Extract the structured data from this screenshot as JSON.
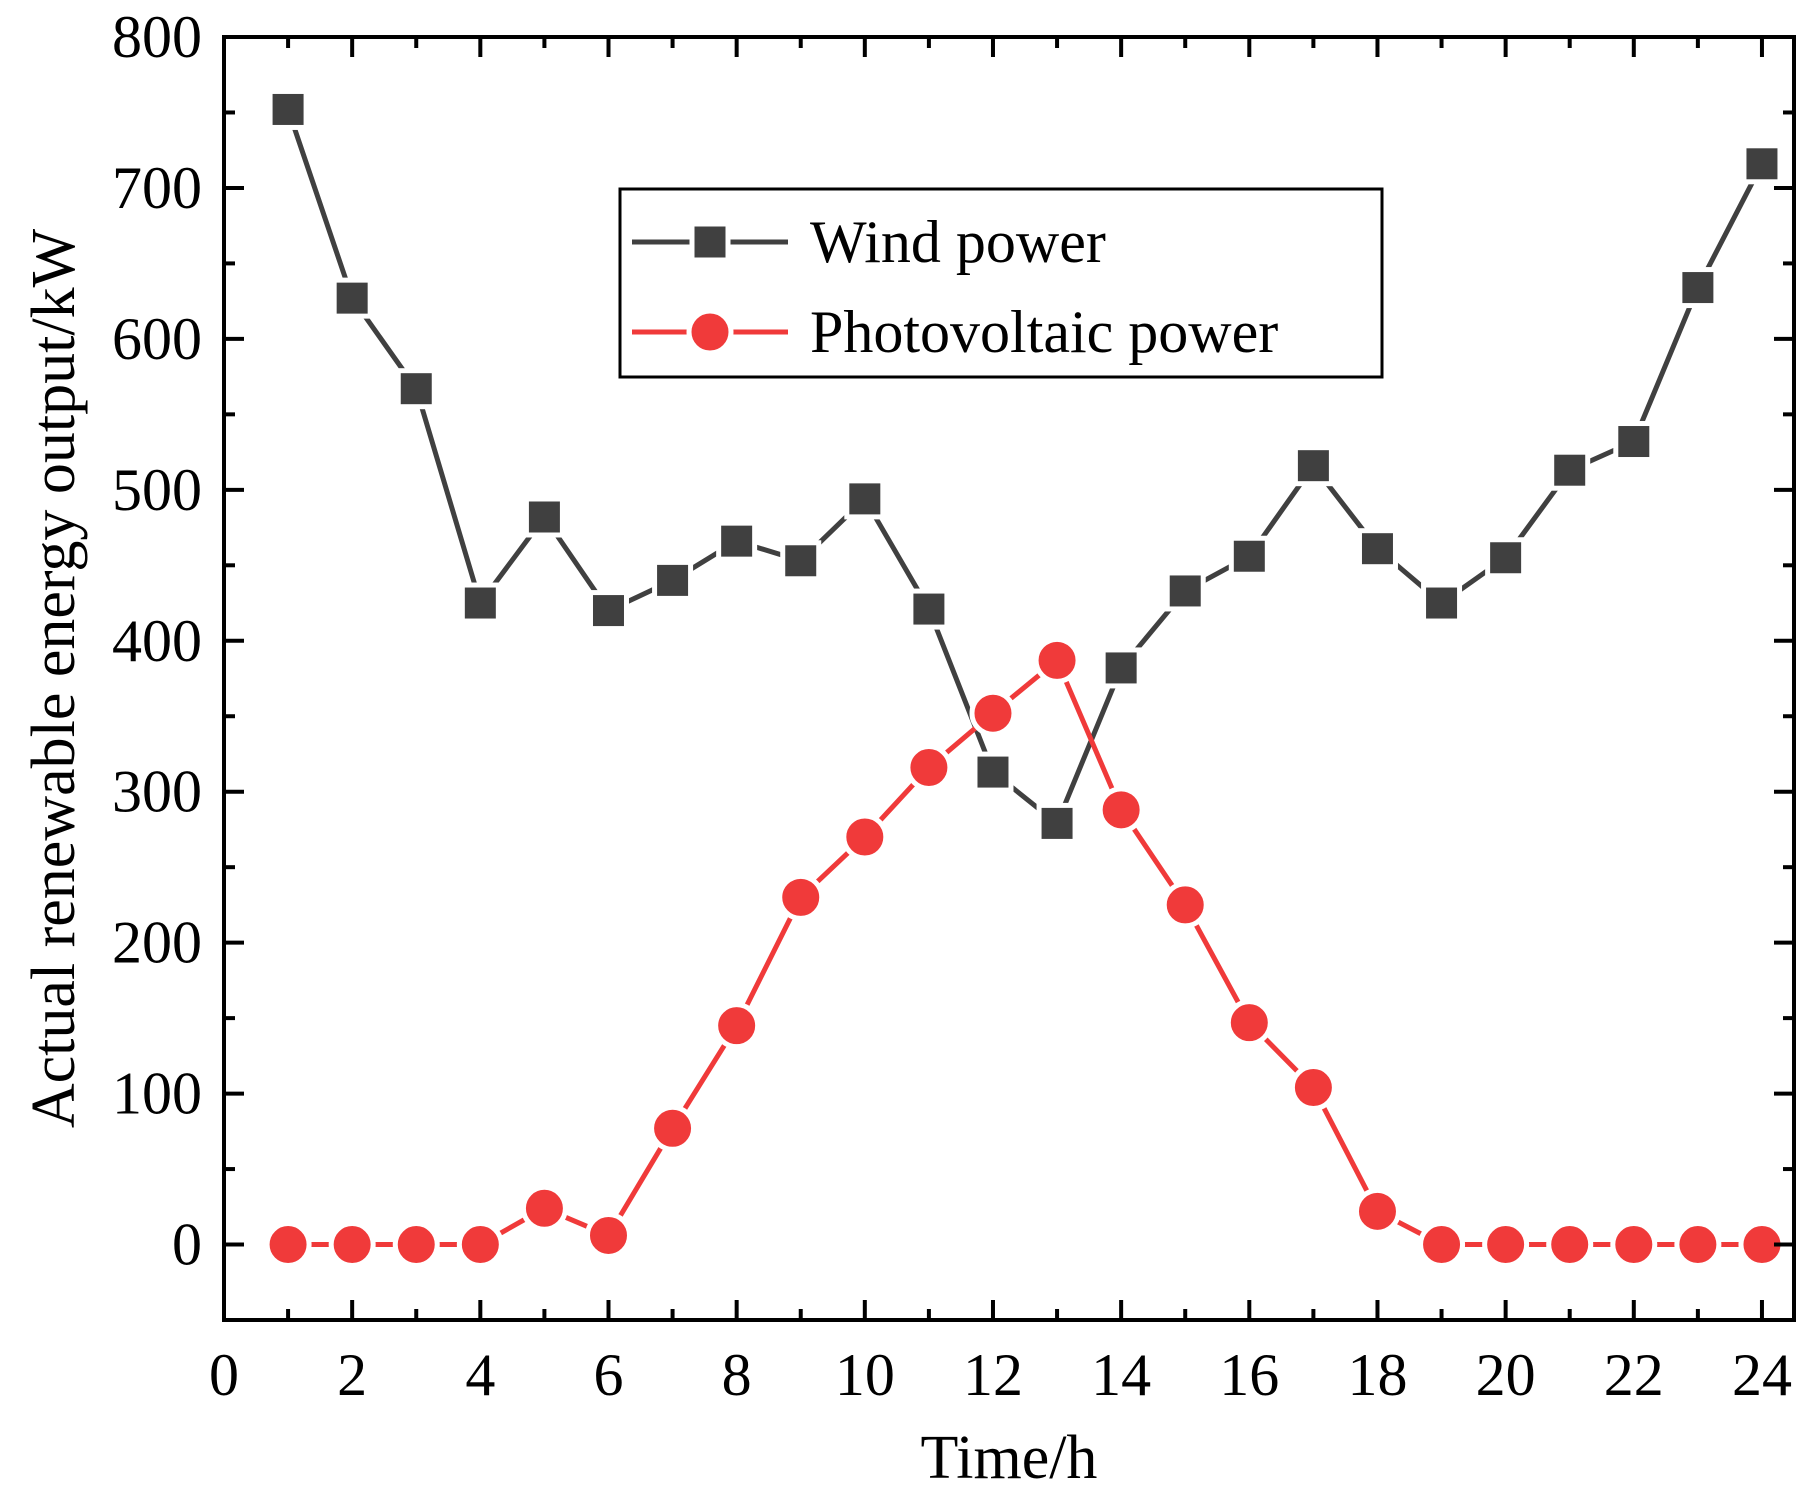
{
  "chart_data": {
    "type": "line",
    "title": "",
    "xlabel": "Time/h",
    "ylabel": "Actual renewable energy output/kW",
    "xlim": [
      0,
      24.5
    ],
    "ylim": [
      -50,
      800
    ],
    "xticks": [
      0,
      2,
      4,
      6,
      8,
      10,
      12,
      14,
      16,
      18,
      20,
      22,
      24
    ],
    "yticks": [
      0,
      100,
      200,
      300,
      400,
      500,
      600,
      700,
      800
    ],
    "x": [
      1,
      2,
      3,
      4,
      5,
      6,
      7,
      8,
      9,
      10,
      11,
      12,
      13,
      14,
      15,
      16,
      17,
      18,
      19,
      20,
      21,
      22,
      23,
      24
    ],
    "legend_position": "top-center",
    "series": [
      {
        "name": "Wind power",
        "marker": "square",
        "color": "#404040",
        "values": [
          752,
          627,
          567,
          425,
          482,
          420,
          440,
          466,
          453,
          494,
          421,
          313,
          279,
          382,
          433,
          456,
          516,
          461,
          425,
          455,
          513,
          532,
          634,
          716
        ]
      },
      {
        "name": "Photovoltaic power",
        "marker": "circle",
        "color": "#f03a3a",
        "values": [
          0,
          0,
          0,
          0,
          24,
          6,
          77,
          145,
          230,
          270,
          316,
          352,
          387,
          288,
          225,
          147,
          104,
          22,
          0,
          0,
          0,
          0,
          0,
          0
        ]
      }
    ]
  }
}
